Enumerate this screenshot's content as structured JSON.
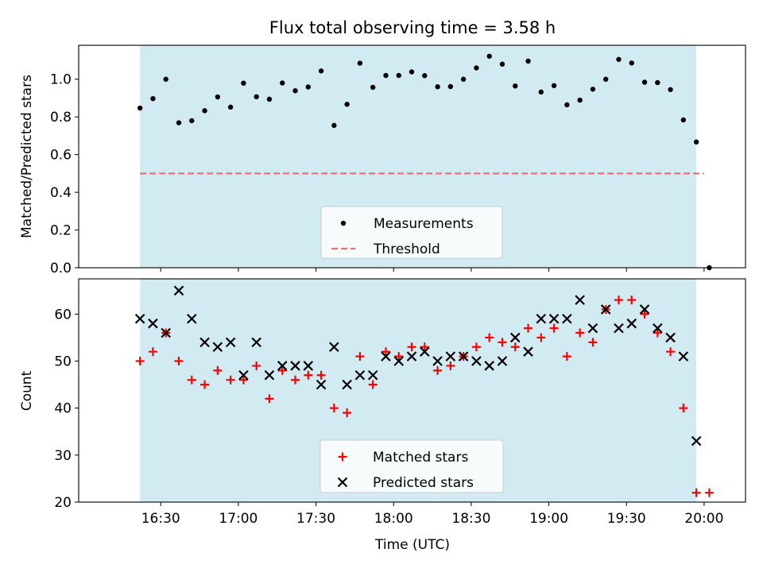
{
  "chart_data": [
    {
      "type": "scatter",
      "title": "Flux total observing time = 3.58 h",
      "xlabel": "",
      "ylabel": "Matched/Predicted stars",
      "ylim": [
        0,
        1.18
      ],
      "yticks": [
        "0.0",
        "0.2",
        "0.4",
        "0.6",
        "0.8",
        "1.0"
      ],
      "ytick_values": [
        0,
        0.2,
        0.4,
        0.6,
        0.8,
        1.0
      ],
      "x_unit": "minutes since 16:00 UTC",
      "legend_position": "bottom-center",
      "shaded_interval": {
        "from": "16:22",
        "to": "19:57",
        "color": "#add8e6"
      },
      "series": [
        {
          "name": "Measurements",
          "marker": "dot",
          "color": "#000000",
          "points": [
            {
              "t": "16:22",
              "y": 0.847
            },
            {
              "t": "16:27",
              "y": 0.897
            },
            {
              "t": "16:32",
              "y": 1.0
            },
            {
              "t": "16:37",
              "y": 0.769
            },
            {
              "t": "16:42",
              "y": 0.78
            },
            {
              "t": "16:47",
              "y": 0.833
            },
            {
              "t": "16:52",
              "y": 0.906
            },
            {
              "t": "16:57",
              "y": 0.852
            },
            {
              "t": "17:02",
              "y": 0.979
            },
            {
              "t": "17:07",
              "y": 0.907
            },
            {
              "t": "17:12",
              "y": 0.894
            },
            {
              "t": "17:17",
              "y": 0.98
            },
            {
              "t": "17:22",
              "y": 0.939
            },
            {
              "t": "17:27",
              "y": 0.959
            },
            {
              "t": "17:32",
              "y": 1.044
            },
            {
              "t": "17:37",
              "y": 0.755
            },
            {
              "t": "17:42",
              "y": 0.867
            },
            {
              "t": "17:47",
              "y": 1.085
            },
            {
              "t": "17:52",
              "y": 0.957
            },
            {
              "t": "17:57",
              "y": 1.02
            },
            {
              "t": "18:02",
              "y": 1.02
            },
            {
              "t": "18:07",
              "y": 1.039
            },
            {
              "t": "18:12",
              "y": 1.019
            },
            {
              "t": "18:17",
              "y": 0.96
            },
            {
              "t": "18:22",
              "y": 0.961
            },
            {
              "t": "18:27",
              "y": 1.0
            },
            {
              "t": "18:32",
              "y": 1.06
            },
            {
              "t": "18:37",
              "y": 1.122
            },
            {
              "t": "18:42",
              "y": 1.08
            },
            {
              "t": "18:47",
              "y": 0.964
            },
            {
              "t": "18:52",
              "y": 1.096
            },
            {
              "t": "18:57",
              "y": 0.932
            },
            {
              "t": "19:02",
              "y": 0.966
            },
            {
              "t": "19:07",
              "y": 0.864
            },
            {
              "t": "19:12",
              "y": 0.889
            },
            {
              "t": "19:17",
              "y": 0.947
            },
            {
              "t": "19:22",
              "y": 1.0
            },
            {
              "t": "19:27",
              "y": 1.105
            },
            {
              "t": "19:32",
              "y": 1.086
            },
            {
              "t": "19:37",
              "y": 0.984
            },
            {
              "t": "19:42",
              "y": 0.982
            },
            {
              "t": "19:47",
              "y": 0.945
            },
            {
              "t": "19:52",
              "y": 0.784
            },
            {
              "t": "19:57",
              "y": 0.667
            },
            {
              "t": "20:02",
              "y": 0.0
            }
          ]
        },
        {
          "name": "Threshold",
          "marker": "dashed-line",
          "color": "#f07070",
          "points": [
            {
              "t": "16:22",
              "y": 0.5
            },
            {
              "t": "20:00",
              "y": 0.5
            }
          ]
        }
      ]
    },
    {
      "type": "scatter",
      "title": "",
      "xlabel": "Time (UTC)",
      "ylabel": "Count",
      "ylim": [
        20,
        67.5
      ],
      "yticks": [
        "20",
        "30",
        "40",
        "50",
        "60"
      ],
      "ytick_values": [
        20,
        30,
        40,
        50,
        60
      ],
      "x_unit": "minutes since 16:00 UTC",
      "xticks": [
        "16:30",
        "17:00",
        "17:30",
        "18:00",
        "18:30",
        "19:00",
        "19:30",
        "20:00"
      ],
      "xtick_values": [
        30,
        60,
        90,
        120,
        150,
        180,
        210,
        240
      ],
      "xlim": [
        -1.7,
        256
      ],
      "legend_position": "bottom-center",
      "shaded_interval": {
        "from": "16:22",
        "to": "19:57",
        "color": "#add8e6"
      },
      "series": [
        {
          "name": "Matched stars",
          "marker": "plus",
          "color": "#ff0000",
          "points": [
            {
              "t": "16:22",
              "y": 50
            },
            {
              "t": "16:27",
              "y": 52
            },
            {
              "t": "16:32",
              "y": 56
            },
            {
              "t": "16:37",
              "y": 50
            },
            {
              "t": "16:42",
              "y": 46
            },
            {
              "t": "16:47",
              "y": 45
            },
            {
              "t": "16:52",
              "y": 48
            },
            {
              "t": "16:57",
              "y": 46
            },
            {
              "t": "17:02",
              "y": 46
            },
            {
              "t": "17:07",
              "y": 49
            },
            {
              "t": "17:12",
              "y": 42
            },
            {
              "t": "17:17",
              "y": 48
            },
            {
              "t": "17:22",
              "y": 46
            },
            {
              "t": "17:27",
              "y": 47
            },
            {
              "t": "17:32",
              "y": 47
            },
            {
              "t": "17:37",
              "y": 40
            },
            {
              "t": "17:42",
              "y": 39
            },
            {
              "t": "17:47",
              "y": 51
            },
            {
              "t": "17:52",
              "y": 45
            },
            {
              "t": "17:57",
              "y": 52
            },
            {
              "t": "18:02",
              "y": 51
            },
            {
              "t": "18:07",
              "y": 53
            },
            {
              "t": "18:12",
              "y": 53
            },
            {
              "t": "18:17",
              "y": 48
            },
            {
              "t": "18:22",
              "y": 49
            },
            {
              "t": "18:27",
              "y": 51
            },
            {
              "t": "18:32",
              "y": 53
            },
            {
              "t": "18:37",
              "y": 55
            },
            {
              "t": "18:42",
              "y": 54
            },
            {
              "t": "18:47",
              "y": 53
            },
            {
              "t": "18:52",
              "y": 57
            },
            {
              "t": "18:57",
              "y": 55
            },
            {
              "t": "19:02",
              "y": 57
            },
            {
              "t": "19:07",
              "y": 51
            },
            {
              "t": "19:12",
              "y": 56
            },
            {
              "t": "19:17",
              "y": 54
            },
            {
              "t": "19:22",
              "y": 61
            },
            {
              "t": "19:27",
              "y": 63
            },
            {
              "t": "19:32",
              "y": 63
            },
            {
              "t": "19:37",
              "y": 60
            },
            {
              "t": "19:42",
              "y": 56
            },
            {
              "t": "19:47",
              "y": 52
            },
            {
              "t": "19:52",
              "y": 40
            },
            {
              "t": "19:57",
              "y": 22
            },
            {
              "t": "20:02",
              "y": 22
            }
          ]
        },
        {
          "name": "Predicted stars",
          "marker": "x",
          "color": "#000000",
          "points": [
            {
              "t": "16:22",
              "y": 59
            },
            {
              "t": "16:27",
              "y": 58
            },
            {
              "t": "16:32",
              "y": 56
            },
            {
              "t": "16:37",
              "y": 65
            },
            {
              "t": "16:42",
              "y": 59
            },
            {
              "t": "16:47",
              "y": 54
            },
            {
              "t": "16:52",
              "y": 53
            },
            {
              "t": "16:57",
              "y": 54
            },
            {
              "t": "17:02",
              "y": 47
            },
            {
              "t": "17:07",
              "y": 54
            },
            {
              "t": "17:12",
              "y": 47
            },
            {
              "t": "17:17",
              "y": 49
            },
            {
              "t": "17:22",
              "y": 49
            },
            {
              "t": "17:27",
              "y": 49
            },
            {
              "t": "17:32",
              "y": 45
            },
            {
              "t": "17:37",
              "y": 53
            },
            {
              "t": "17:42",
              "y": 45
            },
            {
              "t": "17:47",
              "y": 47
            },
            {
              "t": "17:52",
              "y": 47
            },
            {
              "t": "17:57",
              "y": 51
            },
            {
              "t": "18:02",
              "y": 50
            },
            {
              "t": "18:07",
              "y": 51
            },
            {
              "t": "18:12",
              "y": 52
            },
            {
              "t": "18:17",
              "y": 50
            },
            {
              "t": "18:22",
              "y": 51
            },
            {
              "t": "18:27",
              "y": 51
            },
            {
              "t": "18:32",
              "y": 50
            },
            {
              "t": "18:37",
              "y": 49
            },
            {
              "t": "18:42",
              "y": 50
            },
            {
              "t": "18:47",
              "y": 55
            },
            {
              "t": "18:52",
              "y": 52
            },
            {
              "t": "18:57",
              "y": 59
            },
            {
              "t": "19:02",
              "y": 59
            },
            {
              "t": "19:07",
              "y": 59
            },
            {
              "t": "19:12",
              "y": 63
            },
            {
              "t": "19:17",
              "y": 57
            },
            {
              "t": "19:22",
              "y": 61
            },
            {
              "t": "19:27",
              "y": 57
            },
            {
              "t": "19:32",
              "y": 58
            },
            {
              "t": "19:37",
              "y": 61
            },
            {
              "t": "19:42",
              "y": 57
            },
            {
              "t": "19:47",
              "y": 55
            },
            {
              "t": "19:52",
              "y": 51
            },
            {
              "t": "19:57",
              "y": 33
            }
          ]
        }
      ]
    }
  ]
}
